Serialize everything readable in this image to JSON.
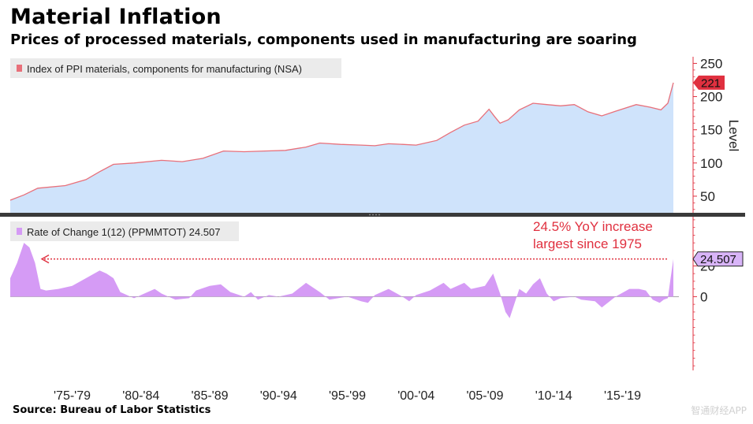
{
  "title": "Material Inflation",
  "subtitle": "Prices of processed materials, components used in manufacturing are soaring",
  "source": "Source: Bureau of Labor Statistics",
  "watermark": "智通财经APP",
  "colors": {
    "index_fill": "#cfe3fb",
    "index_line": "#e8707a",
    "roc_fill": "#d59bf5",
    "accent_red": "#e0303f",
    "badge_purple": "#d8b4f8",
    "divider": "#3a3a3a"
  },
  "chart_data": [
    {
      "type": "area",
      "panel": "top",
      "legend": "Index of PPI materials, components for manufacturing (NSA)",
      "ylabel": "Level",
      "ylim": [
        25,
        260
      ],
      "yticks": [
        50,
        100,
        150,
        200,
        250
      ],
      "last_value_label": "221",
      "x": [
        1973.0,
        1974.0,
        1975.0,
        1977.0,
        1978.5,
        1979.5,
        1980.5,
        1982.0,
        1984.0,
        1985.5,
        1987.0,
        1988.5,
        1990.0,
        1991.5,
        1993.0,
        1994.5,
        1995.5,
        1997.0,
        1998.5,
        1999.5,
        2000.5,
        2001.5,
        2002.5,
        2004.0,
        2005.0,
        2006.0,
        2007.0,
        2007.8,
        2008.2,
        2008.6,
        2009.2,
        2010.0,
        2011.0,
        2012.0,
        2013.0,
        2014.0,
        2015.0,
        2016.0,
        2017.0,
        2018.5,
        2019.5,
        2020.3,
        2020.8,
        2021.2
      ],
      "values": [
        44,
        52,
        62,
        66,
        75,
        87,
        98,
        100,
        104,
        102,
        107,
        118,
        117,
        118,
        119,
        124,
        130,
        128,
        127,
        126,
        129,
        128,
        127,
        134,
        146,
        157,
        163,
        181,
        170,
        160,
        165,
        180,
        190,
        188,
        186,
        188,
        177,
        171,
        178,
        188,
        184,
        180,
        190,
        221
      ]
    },
    {
      "type": "area",
      "panel": "bottom",
      "legend": "Rate of Change 1(12) (PPMMTOT) 24.507",
      "ylim": [
        -48,
        52
      ],
      "yticks": [
        0,
        20
      ],
      "last_value_label": "24.507",
      "x": [
        1973.0,
        1973.5,
        1974.0,
        1974.4,
        1974.8,
        1975.2,
        1975.6,
        1976.5,
        1977.5,
        1978.5,
        1979.5,
        1980.0,
        1980.5,
        1981.0,
        1982.0,
        1982.5,
        1983.5,
        1984.0,
        1985.0,
        1986.0,
        1986.5,
        1987.5,
        1988.3,
        1989.0,
        1990.0,
        1990.5,
        1991.0,
        1991.8,
        1992.5,
        1993.5,
        1994.5,
        1995.5,
        1996.2,
        1997.5,
        1998.5,
        1999.0,
        1999.5,
        2000.5,
        2001.5,
        2002.0,
        2002.5,
        2003.5,
        2004.5,
        2005.0,
        2005.5,
        2006.0,
        2006.5,
        2007.5,
        2008.1,
        2008.6,
        2009.0,
        2009.3,
        2010.0,
        2010.5,
        2011.0,
        2011.5,
        2012.0,
        2012.5,
        2013.0,
        2014.0,
        2014.5,
        2015.5,
        2016.0,
        2017.0,
        2018.0,
        2018.7,
        2019.2,
        2019.7,
        2020.2,
        2020.5,
        2020.8,
        2021.0,
        2021.2
      ],
      "values": [
        12,
        22,
        35,
        32,
        22,
        5,
        4,
        5,
        7,
        12,
        17,
        15,
        12,
        3,
        -1,
        1,
        5,
        2,
        -2,
        -1,
        4,
        7,
        8,
        3,
        0,
        3,
        -2,
        1,
        0,
        2,
        9,
        3,
        -2,
        0,
        -3,
        -4,
        1,
        5,
        0,
        -3,
        1,
        4,
        9,
        5,
        7,
        9,
        5,
        7,
        15,
        2,
        -10,
        -14,
        5,
        2,
        8,
        12,
        2,
        -3,
        -1,
        0,
        -2,
        -3,
        -7,
        0,
        5,
        5,
        4,
        -2,
        -4,
        -2,
        -1,
        12,
        24.5
      ]
    }
  ],
  "x_axis": {
    "range": [
      1973.0,
      2021.6
    ],
    "tick_labels": [
      "'75-'79",
      "'80-'84",
      "'85-'89",
      "'90-'94",
      "'95-'99",
      "'00-'04",
      "'05-'09",
      "'10-'14",
      "'15-'19"
    ]
  },
  "annotation": {
    "line1": "24.5% YoY increase",
    "line2": "largest since 1975"
  }
}
